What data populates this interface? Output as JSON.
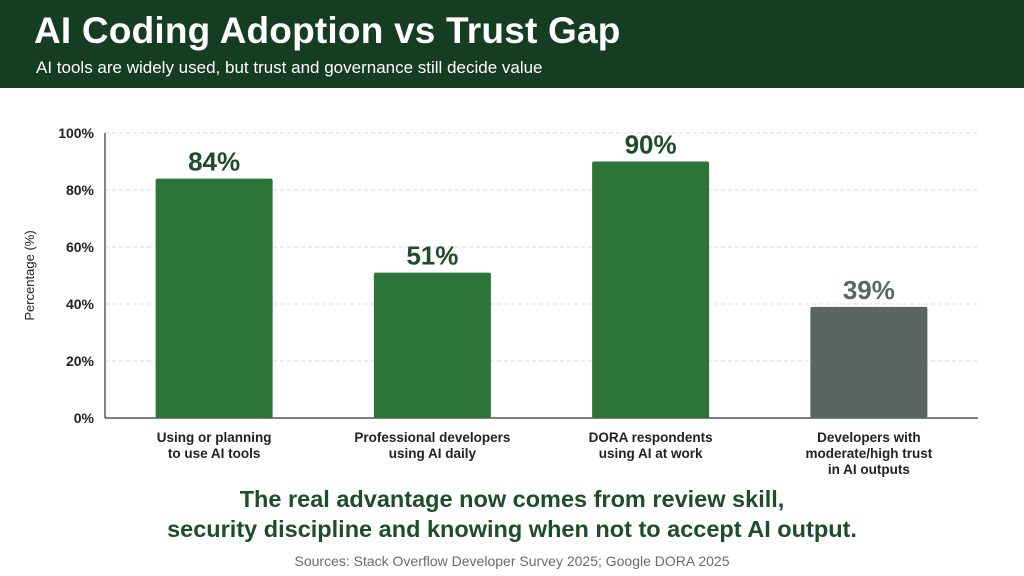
{
  "header": {
    "title": "AI Coding Adoption vs Trust Gap",
    "subtitle": "AI tools are widely used, but trust and governance still decide value"
  },
  "chart_data": {
    "type": "bar",
    "ylabel": "Percentage (%)",
    "ylim": [
      0,
      100
    ],
    "yticks": [
      0,
      20,
      40,
      60,
      80,
      100
    ],
    "ytick_labels": [
      "0%",
      "20%",
      "40%",
      "60%",
      "80%",
      "100%"
    ],
    "grid": true,
    "categories": [
      [
        "Using or planning",
        "to use AI tools"
      ],
      [
        "Professional developers",
        "using AI daily"
      ],
      [
        "DORA respondents",
        "using AI at work"
      ],
      [
        "Developers with",
        "moderate/high trust",
        "in AI outputs"
      ]
    ],
    "values": [
      84,
      51,
      90,
      39
    ],
    "value_labels": [
      "84%",
      "51%",
      "90%",
      "39%"
    ],
    "colors": [
      "#2b7538",
      "#2b7538",
      "#2b7538",
      "#5b6661"
    ],
    "label_colors": [
      "#1d4d2a",
      "#1d4d2a",
      "#1d4d2a",
      "#5b6661"
    ]
  },
  "takeaway": {
    "line1": "The real advantage now comes from review skill,",
    "line2": "security discipline and knowing when not to accept AI output."
  },
  "footer": {
    "sources": "Sources: Stack Overflow Developer Survey 2025; Google DORA 2025"
  }
}
